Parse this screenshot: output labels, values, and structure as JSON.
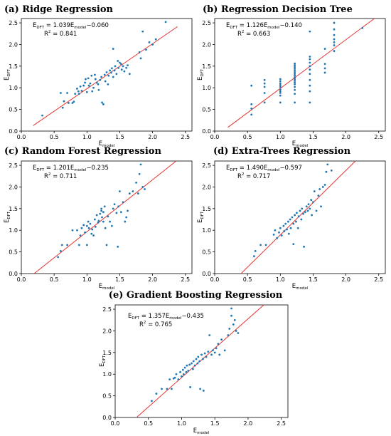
{
  "chart_data": [
    {
      "id": "a",
      "type": "scatter",
      "title": "(a) Ridge Regression",
      "equation": "E_DFT = 1.039E_model −0.060",
      "eq_parts": [
        "1.039",
        "−0.060"
      ],
      "r2_label": "R² = 0.841",
      "xlabel": "E_model",
      "ylabel": "E_DFT",
      "xlim": [
        0,
        2.6
      ],
      "ylim": [
        0,
        2.6
      ],
      "xticks": [
        "0.0",
        "0.5",
        "1.0",
        "1.5",
        "2.0",
        "2.5"
      ],
      "yticks": [
        "0.0",
        "0.5",
        "1.0",
        "1.5",
        "2.0",
        "2.5"
      ],
      "fit_line": {
        "slope": 1.039,
        "intercept": -0.06,
        "x_range": [
          0.18,
          2.38
        ]
      },
      "points": [
        [
          0.32,
          0.36
        ],
        [
          0.6,
          0.88
        ],
        [
          0.63,
          0.54
        ],
        [
          0.65,
          0.69
        ],
        [
          0.7,
          0.88
        ],
        [
          0.72,
          0.65
        ],
        [
          0.78,
          0.65
        ],
        [
          0.8,
          0.68
        ],
        [
          0.82,
          0.86
        ],
        [
          0.85,
          0.98
        ],
        [
          0.87,
          0.92
        ],
        [
          0.88,
          0.86
        ],
        [
          0.9,
          1.03
        ],
        [
          0.92,
          0.93
        ],
        [
          0.95,
          1.05
        ],
        [
          0.97,
          1.12
        ],
        [
          0.98,
          1.2
        ],
        [
          1.0,
          0.9
        ],
        [
          1.02,
          1.22
        ],
        [
          1.03,
          1.05
        ],
        [
          1.05,
          1.1
        ],
        [
          1.07,
          1.28
        ],
        [
          1.08,
          0.92
        ],
        [
          1.1,
          1.0
        ],
        [
          1.12,
          1.3
        ],
        [
          1.13,
          1.2
        ],
        [
          1.15,
          1.12
        ],
        [
          1.17,
          1.08
        ],
        [
          1.18,
          0.95
        ],
        [
          1.2,
          1.18
        ],
        [
          1.22,
          1.25
        ],
        [
          1.23,
          0.66
        ],
        [
          1.25,
          0.62
        ],
        [
          1.27,
          1.3
        ],
        [
          1.28,
          1.15
        ],
        [
          1.3,
          1.36
        ],
        [
          1.32,
          1.08
        ],
        [
          1.33,
          1.28
        ],
        [
          1.35,
          1.4
        ],
        [
          1.37,
          1.35
        ],
        [
          1.38,
          1.45
        ],
        [
          1.4,
          1.25
        ],
        [
          1.4,
          1.9
        ],
        [
          1.42,
          1.4
        ],
        [
          1.43,
          1.5
        ],
        [
          1.45,
          1.32
        ],
        [
          1.47,
          1.62
        ],
        [
          1.48,
          1.46
        ],
        [
          1.5,
          1.58
        ],
        [
          1.52,
          1.55
        ],
        [
          1.53,
          1.42
        ],
        [
          1.55,
          1.5
        ],
        [
          1.57,
          1.38
        ],
        [
          1.6,
          1.46
        ],
        [
          1.62,
          1.52
        ],
        [
          1.65,
          1.32
        ],
        [
          1.8,
          1.82
        ],
        [
          1.82,
          1.68
        ],
        [
          1.85,
          2.3
        ],
        [
          1.9,
          1.88
        ],
        [
          1.95,
          2.05
        ],
        [
          2.0,
          2.0
        ],
        [
          2.05,
          2.12
        ],
        [
          2.2,
          2.52
        ]
      ]
    },
    {
      "id": "b",
      "type": "scatter",
      "title": "(b) Regression Decision Tree",
      "equation": "E_DFT = 1.126E_model −0.140",
      "eq_parts": [
        "1.126",
        "−0.140"
      ],
      "r2_label": "R² = 0.663",
      "xlabel": "E_model",
      "ylabel": "E_DFT",
      "xlim": [
        0,
        2.6
      ],
      "ylim": [
        0,
        2.6
      ],
      "xticks": [
        "0.0",
        "0.5",
        "1.0",
        "1.5",
        "2.0",
        "2.5"
      ],
      "yticks": [
        "0.0",
        "0.5",
        "1.0",
        "1.5",
        "2.0",
        "2.5"
      ],
      "fit_line": {
        "slope": 1.126,
        "intercept": -0.14,
        "x_range": [
          0.2,
          2.45
        ]
      },
      "points": [
        [
          0.56,
          0.38
        ],
        [
          0.56,
          0.52
        ],
        [
          0.56,
          0.62
        ],
        [
          0.56,
          1.05
        ],
        [
          0.76,
          0.66
        ],
        [
          0.76,
          0.88
        ],
        [
          0.76,
          1.02
        ],
        [
          0.76,
          1.1
        ],
        [
          0.76,
          1.18
        ],
        [
          1.0,
          0.66
        ],
        [
          1.0,
          0.82
        ],
        [
          1.0,
          0.88
        ],
        [
          1.0,
          0.92
        ],
        [
          1.0,
          0.96
        ],
        [
          1.0,
          1.02
        ],
        [
          1.0,
          1.06
        ],
        [
          1.0,
          1.1
        ],
        [
          1.0,
          1.15
        ],
        [
          1.0,
          1.2
        ],
        [
          1.22,
          0.66
        ],
        [
          1.22,
          0.86
        ],
        [
          1.22,
          0.95
        ],
        [
          1.22,
          1.02
        ],
        [
          1.22,
          1.08
        ],
        [
          1.22,
          1.12
        ],
        [
          1.22,
          1.16
        ],
        [
          1.22,
          1.2
        ],
        [
          1.22,
          1.24
        ],
        [
          1.22,
          1.28
        ],
        [
          1.22,
          1.32
        ],
        [
          1.22,
          1.36
        ],
        [
          1.22,
          1.4
        ],
        [
          1.22,
          1.44
        ],
        [
          1.22,
          1.48
        ],
        [
          1.22,
          1.52
        ],
        [
          1.22,
          1.56
        ],
        [
          1.45,
          0.66
        ],
        [
          1.45,
          0.92
        ],
        [
          1.45,
          1.05
        ],
        [
          1.45,
          1.18
        ],
        [
          1.45,
          1.32
        ],
        [
          1.45,
          1.42
        ],
        [
          1.45,
          1.5
        ],
        [
          1.45,
          1.58
        ],
        [
          1.45,
          1.66
        ],
        [
          1.45,
          1.72
        ],
        [
          1.45,
          2.3
        ],
        [
          1.68,
          1.35
        ],
        [
          1.68,
          1.45
        ],
        [
          1.68,
          1.55
        ],
        [
          1.68,
          1.9
        ],
        [
          1.82,
          1.85
        ],
        [
          1.82,
          1.98
        ],
        [
          1.82,
          2.05
        ],
        [
          1.82,
          2.12
        ],
        [
          1.82,
          2.22
        ],
        [
          1.82,
          2.35
        ],
        [
          1.82,
          2.5
        ],
        [
          2.25,
          2.38
        ]
      ]
    },
    {
      "id": "c",
      "type": "scatter",
      "title": "(c) Random Forest Regression",
      "equation": "E_DFT = 1.201E_model −0.235",
      "eq_parts": [
        "1.201",
        "−0.235"
      ],
      "r2_label": "R² = 0.711",
      "xlabel": "E_model",
      "ylabel": "E_DFT",
      "xlim": [
        0,
        2.6
      ],
      "ylim": [
        0,
        2.6
      ],
      "xticks": [
        "0.0",
        "0.5",
        "1.0",
        "1.5",
        "2.0",
        "2.5"
      ],
      "yticks": [
        "0.0",
        "0.5",
        "1.0",
        "1.5",
        "2.0",
        "2.5"
      ],
      "fit_line": {
        "slope": 1.201,
        "intercept": -0.235,
        "x_range": [
          0.2,
          2.36
        ]
      },
      "points": [
        [
          0.56,
          0.38
        ],
        [
          0.6,
          0.52
        ],
        [
          0.62,
          0.66
        ],
        [
          0.7,
          0.66
        ],
        [
          0.78,
          1.0
        ],
        [
          0.85,
          1.0
        ],
        [
          0.88,
          0.66
        ],
        [
          0.9,
          0.88
        ],
        [
          0.92,
          1.05
        ],
        [
          0.95,
          1.12
        ],
        [
          0.97,
          0.95
        ],
        [
          1.0,
          1.1
        ],
        [
          1.0,
          0.66
        ],
        [
          1.02,
          1.2
        ],
        [
          1.03,
          1.05
        ],
        [
          1.05,
          1.15
        ],
        [
          1.07,
          0.92
        ],
        [
          1.08,
          1.02
        ],
        [
          1.1,
          0.88
        ],
        [
          1.12,
          1.25
        ],
        [
          1.13,
          1.08
        ],
        [
          1.15,
          1.35
        ],
        [
          1.17,
          1.18
        ],
        [
          1.18,
          1.22
        ],
        [
          1.2,
          1.38
        ],
        [
          1.22,
          1.5
        ],
        [
          1.22,
          1.45
        ],
        [
          1.23,
          1.3
        ],
        [
          1.25,
          1.42
        ],
        [
          1.25,
          1.2
        ],
        [
          1.27,
          1.55
        ],
        [
          1.28,
          1.05
        ],
        [
          1.3,
          0.66
        ],
        [
          1.32,
          1.32
        ],
        [
          1.35,
          1.2
        ],
        [
          1.38,
          1.1
        ],
        [
          1.4,
          1.5
        ],
        [
          1.42,
          1.6
        ],
        [
          1.45,
          1.4
        ],
        [
          1.47,
          0.62
        ],
        [
          1.48,
          1.55
        ],
        [
          1.5,
          1.9
        ],
        [
          1.52,
          1.42
        ],
        [
          1.55,
          1.65
        ],
        [
          1.58,
          1.2
        ],
        [
          1.6,
          1.3
        ],
        [
          1.62,
          1.45
        ],
        [
          1.65,
          1.85
        ],
        [
          1.7,
          1.9
        ],
        [
          1.75,
          2.1
        ],
        [
          1.78,
          1.85
        ],
        [
          1.8,
          2.3
        ],
        [
          1.82,
          2.52
        ],
        [
          1.85,
          2.0
        ],
        [
          1.88,
          1.95
        ]
      ]
    },
    {
      "id": "d",
      "type": "scatter",
      "title": "(d) Extra-Trees Regression",
      "equation": "E_DFT = 1.490E_model −0.597",
      "eq_parts": [
        "1.490",
        "−0.597"
      ],
      "r2_label": "R² = 0.717",
      "xlabel": "E_model",
      "ylabel": "E_DFT",
      "xlim": [
        0,
        2.6
      ],
      "ylim": [
        0,
        2.6
      ],
      "xticks": [
        "0.0",
        "0.5",
        "1.0",
        "1.5",
        "2.0",
        "2.5"
      ],
      "yticks": [
        "0.0",
        "0.5",
        "1.0",
        "1.5",
        "2.0",
        "2.5"
      ],
      "fit_line": {
        "slope": 1.49,
        "intercept": -0.597,
        "x_range": [
          0.4,
          2.15
        ]
      },
      "points": [
        [
          0.6,
          0.4
        ],
        [
          0.62,
          0.52
        ],
        [
          0.7,
          0.66
        ],
        [
          0.78,
          0.66
        ],
        [
          0.9,
          0.9
        ],
        [
          0.92,
          1.0
        ],
        [
          0.95,
          0.82
        ],
        [
          0.98,
          0.95
        ],
        [
          1.0,
          1.05
        ],
        [
          1.02,
          0.88
        ],
        [
          1.05,
          1.1
        ],
        [
          1.06,
          0.98
        ],
        [
          1.08,
          1.15
        ],
        [
          1.1,
          1.02
        ],
        [
          1.12,
          1.2
        ],
        [
          1.13,
          0.92
        ],
        [
          1.15,
          1.25
        ],
        [
          1.16,
          1.05
        ],
        [
          1.18,
          1.3
        ],
        [
          1.2,
          1.15
        ],
        [
          1.2,
          0.68
        ],
        [
          1.22,
          1.35
        ],
        [
          1.24,
          1.2
        ],
        [
          1.25,
          1.4
        ],
        [
          1.27,
          1.05
        ],
        [
          1.28,
          1.32
        ],
        [
          1.3,
          1.45
        ],
        [
          1.32,
          1.25
        ],
        [
          1.33,
          1.5
        ],
        [
          1.35,
          1.38
        ],
        [
          1.36,
          0.62
        ],
        [
          1.38,
          1.42
        ],
        [
          1.4,
          1.55
        ],
        [
          1.42,
          1.45
        ],
        [
          1.43,
          1.6
        ],
        [
          1.45,
          1.5
        ],
        [
          1.47,
          1.7
        ],
        [
          1.48,
          1.35
        ],
        [
          1.5,
          1.65
        ],
        [
          1.52,
          1.9
        ],
        [
          1.55,
          1.45
        ],
        [
          1.58,
          1.8
        ],
        [
          1.6,
          1.95
        ],
        [
          1.62,
          1.55
        ],
        [
          1.65,
          2.0
        ],
        [
          1.68,
          2.05
        ],
        [
          1.7,
          2.35
        ],
        [
          1.72,
          2.52
        ],
        [
          1.78,
          2.38
        ]
      ]
    },
    {
      "id": "e",
      "type": "scatter",
      "title": "(e) Gradient Boosting Regression",
      "equation": "E_DFT = 1.357E_model −0.435",
      "eq_parts": [
        "1.357",
        "−0.435"
      ],
      "r2_label": "R² = 0.765",
      "xlabel": "E_model",
      "ylabel": "E_DFT",
      "xlim": [
        0,
        2.6
      ],
      "ylim": [
        0,
        2.6
      ],
      "xticks": [
        "0.0",
        "0.5",
        "1.0",
        "1.5",
        "2.0",
        "2.5"
      ],
      "yticks": [
        "0.0",
        "0.5",
        "1.0",
        "1.5",
        "2.0",
        "2.5"
      ],
      "fit_line": {
        "slope": 1.357,
        "intercept": -0.435,
        "x_range": [
          0.33,
          2.25
        ]
      },
      "points": [
        [
          0.55,
          0.38
        ],
        [
          0.62,
          0.55
        ],
        [
          0.7,
          0.66
        ],
        [
          0.78,
          0.66
        ],
        [
          0.82,
          0.88
        ],
        [
          0.85,
          0.66
        ],
        [
          0.88,
          0.9
        ],
        [
          0.9,
          0.92
        ],
        [
          0.92,
          1.0
        ],
        [
          0.95,
          0.88
        ],
        [
          0.98,
          1.05
        ],
        [
          1.0,
          0.95
        ],
        [
          1.02,
          1.1
        ],
        [
          1.03,
          1.0
        ],
        [
          1.05,
          1.15
        ],
        [
          1.07,
          1.05
        ],
        [
          1.08,
          1.2
        ],
        [
          1.1,
          1.08
        ],
        [
          1.12,
          1.22
        ],
        [
          1.13,
          0.7
        ],
        [
          1.15,
          1.25
        ],
        [
          1.17,
          1.12
        ],
        [
          1.18,
          1.3
        ],
        [
          1.2,
          1.2
        ],
        [
          1.22,
          1.35
        ],
        [
          1.24,
          1.25
        ],
        [
          1.25,
          1.4
        ],
        [
          1.27,
          1.3
        ],
        [
          1.28,
          0.66
        ],
        [
          1.3,
          1.45
        ],
        [
          1.32,
          1.35
        ],
        [
          1.33,
          0.62
        ],
        [
          1.35,
          1.48
        ],
        [
          1.37,
          1.4
        ],
        [
          1.4,
          1.52
        ],
        [
          1.42,
          1.9
        ],
        [
          1.45,
          1.45
        ],
        [
          1.47,
          1.55
        ],
        [
          1.5,
          1.5
        ],
        [
          1.52,
          1.6
        ],
        [
          1.55,
          1.7
        ],
        [
          1.57,
          1.45
        ],
        [
          1.6,
          1.8
        ],
        [
          1.65,
          1.55
        ],
        [
          1.7,
          1.9
        ],
        [
          1.72,
          2.05
        ],
        [
          1.75,
          2.35
        ],
        [
          1.75,
          2.52
        ],
        [
          1.78,
          2.15
        ],
        [
          1.8,
          2.25
        ],
        [
          1.82,
          2.0
        ],
        [
          1.85,
          1.95
        ]
      ]
    }
  ],
  "colors": {
    "points": "#1f77b4",
    "fit_line": "#e6322d",
    "axis": "#000000"
  },
  "labels": {
    "a": {
      "title": "(a) Ridge Regression",
      "r2": "R² = 0.841",
      "slope": "1.039",
      "intercept": "−0.060"
    },
    "b": {
      "title": "(b) Regression Decision Tree",
      "r2": "R² = 0.663",
      "slope": "1.126",
      "intercept": "−0.140"
    },
    "c": {
      "title": "(c) Random Forest Regression",
      "r2": "R² = 0.711",
      "slope": "1.201",
      "intercept": "−0.235"
    },
    "d": {
      "title": "(d) Extra-Trees Regression",
      "r2": "R² = 0.717",
      "slope": "1.490",
      "intercept": "−0.597"
    },
    "e": {
      "title": "(e) Gradient Boosting Regression",
      "r2": "R² = 0.765",
      "slope": "1.357",
      "intercept": "−0.435"
    }
  }
}
